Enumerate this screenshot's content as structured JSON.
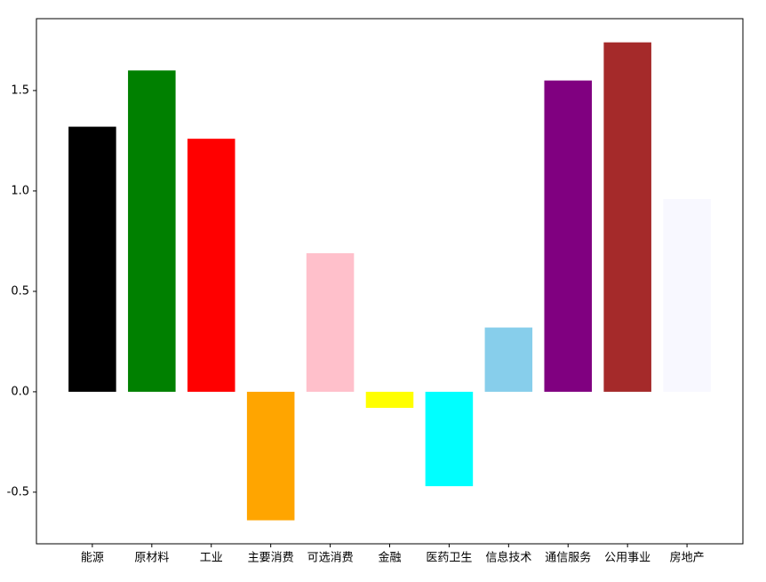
{
  "chart_data": {
    "type": "bar",
    "categories": [
      "能源",
      "原材料",
      "工业",
      "主要消费",
      "可选消费",
      "金融",
      "医药卫生",
      "信息技术",
      "通信服务",
      "公用事业",
      "房地产"
    ],
    "values": [
      1.32,
      1.6,
      1.26,
      -0.64,
      0.69,
      -0.08,
      -0.47,
      0.32,
      1.55,
      1.74,
      0.96
    ],
    "colors": [
      "#000000",
      "#008000",
      "#ff0000",
      "#ffa500",
      "#ffc0cb",
      "#ffff00",
      "#00ffff",
      "#87ceeb",
      "#800080",
      "#a52a2a",
      "#f8f8ff"
    ],
    "ylim": [
      -0.757,
      1.858
    ],
    "yticks": [
      -0.5,
      {
        "value": 0,
        "label": "0.0"
      },
      0.5,
      {
        "value": 1,
        "label": "1.0"
      },
      1.5
    ],
    "grid": false
  }
}
